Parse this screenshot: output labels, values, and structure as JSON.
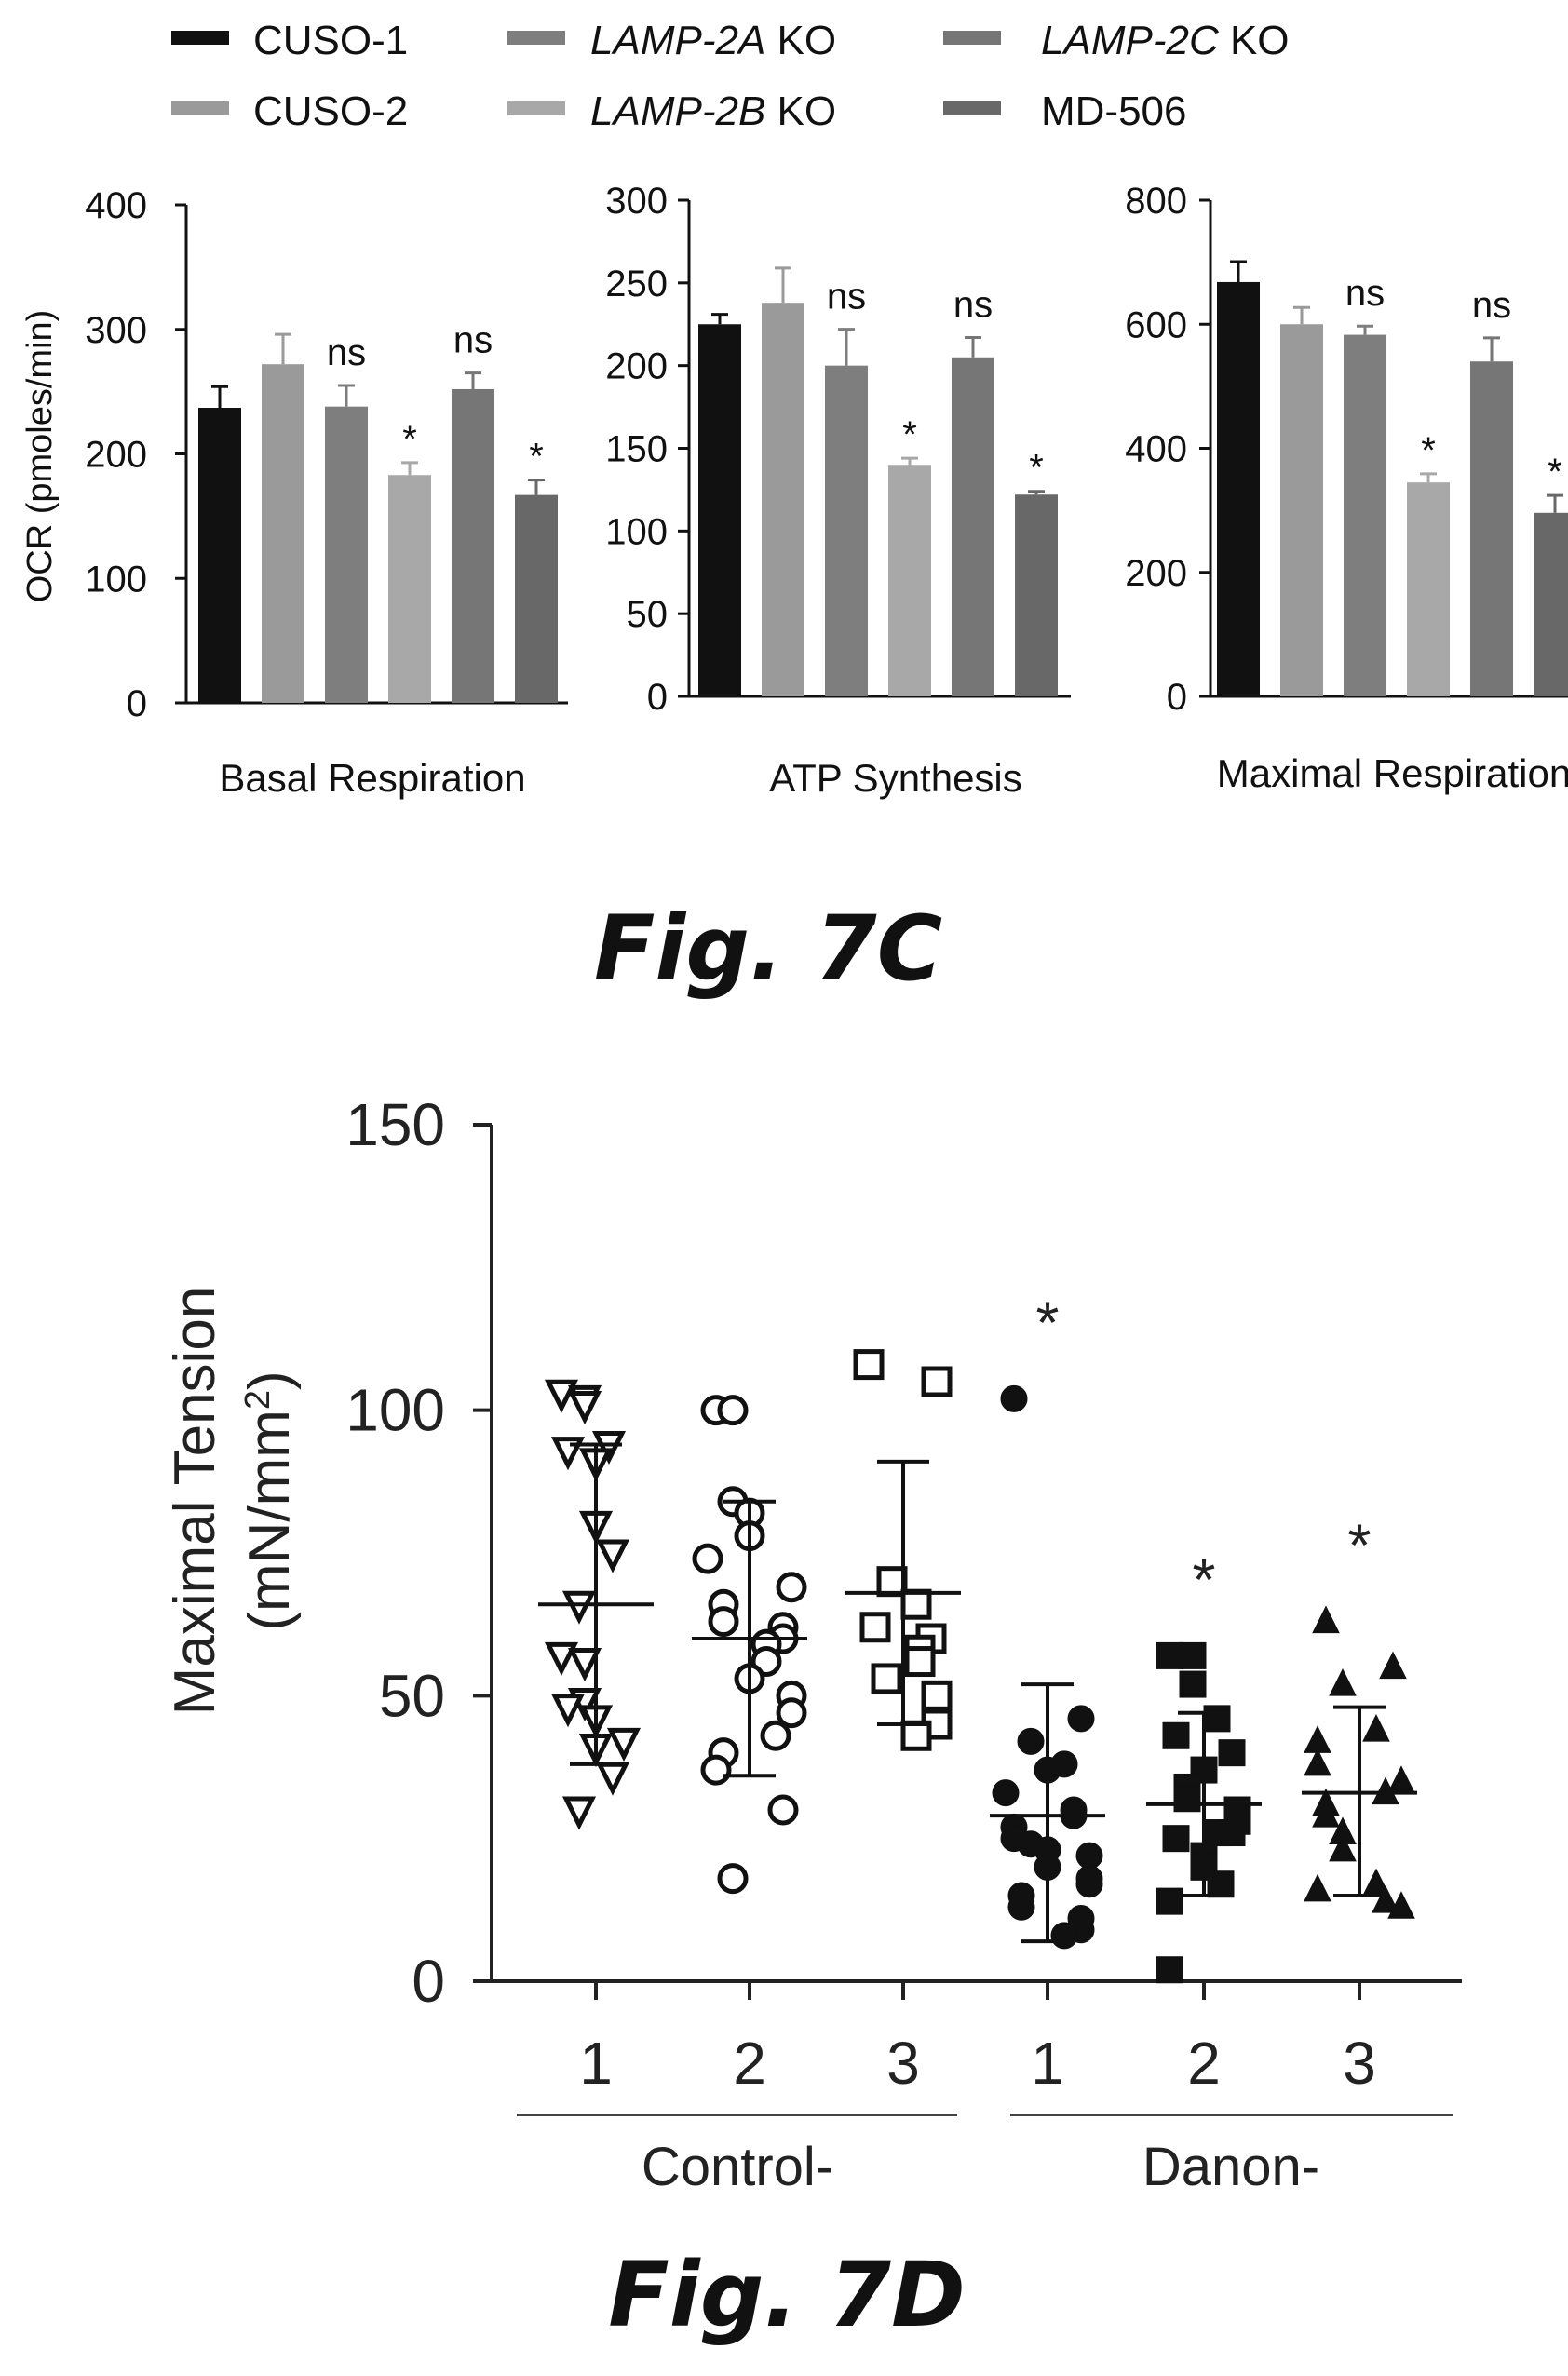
{
  "colors": {
    "CUSO-1": "#111111",
    "CUSO-2": "#9a9a9a",
    "LAMP-2A KO": "#7e7e7e",
    "LAMP-2B KO": "#a8a8a8",
    "LAMP-2C KO": "#767676",
    "MD-506": "#686868"
  },
  "legend": [
    {
      "italic": "",
      "rest": "CUSO-1",
      "color_key": "CUSO-1"
    },
    {
      "italic": "",
      "rest": "CUSO-2",
      "color_key": "CUSO-2"
    },
    {
      "italic": "LAMP-2A",
      "rest": " KO",
      "color_key": "LAMP-2A KO"
    },
    {
      "italic": "LAMP-2B",
      "rest": " KO",
      "color_key": "LAMP-2B KO"
    },
    {
      "italic": "LAMP-2C",
      "rest": " KO",
      "color_key": "LAMP-2C KO"
    },
    {
      "italic": "",
      "rest": "MD-506",
      "color_key": "MD-506"
    }
  ],
  "fig7c_caption": "Fig. 7C",
  "fig7d_caption": "Fig. 7D",
  "chart_data": [
    {
      "type": "bar",
      "title": "",
      "xlabel": "Basal Respiration",
      "ylabel": "OCR (pmoles/min)",
      "ylim": [
        0,
        400
      ],
      "yticks": [
        0,
        100,
        200,
        300,
        400
      ],
      "series": [
        {
          "name": "CUSO-1",
          "value": 237,
          "error": 17,
          "annotation": ""
        },
        {
          "name": "CUSO-2",
          "value": 272,
          "error": 24,
          "annotation": ""
        },
        {
          "name": "LAMP-2A KO",
          "value": 238,
          "error": 17,
          "annotation": "ns"
        },
        {
          "name": "LAMP-2B KO",
          "value": 183,
          "error": 10,
          "annotation": "*"
        },
        {
          "name": "LAMP-2C KO",
          "value": 252,
          "error": 13,
          "annotation": "ns"
        },
        {
          "name": "MD-506",
          "value": 167,
          "error": 12,
          "annotation": "*"
        }
      ]
    },
    {
      "type": "bar",
      "title": "",
      "xlabel": "ATP Synthesis",
      "ylabel": "",
      "ylim": [
        0,
        300
      ],
      "yticks": [
        0,
        50,
        100,
        150,
        200,
        250,
        300
      ],
      "series": [
        {
          "name": "CUSO-1",
          "value": 225,
          "error": 6,
          "annotation": ""
        },
        {
          "name": "CUSO-2",
          "value": 238,
          "error": 21,
          "annotation": ""
        },
        {
          "name": "LAMP-2A KO",
          "value": 200,
          "error": 22,
          "annotation": "ns"
        },
        {
          "name": "LAMP-2B KO",
          "value": 140,
          "error": 4,
          "annotation": "*"
        },
        {
          "name": "LAMP-2C KO",
          "value": 205,
          "error": 12,
          "annotation": "ns"
        },
        {
          "name": "MD-506",
          "value": 122,
          "error": 2,
          "annotation": "*"
        }
      ]
    },
    {
      "type": "bar",
      "title": "",
      "xlabel": "Maximal Respiration",
      "ylabel": "",
      "ylim": [
        0,
        800
      ],
      "yticks": [
        0,
        200,
        400,
        600,
        800
      ],
      "series": [
        {
          "name": "CUSO-1",
          "value": 668,
          "error": 33,
          "annotation": ""
        },
        {
          "name": "CUSO-2",
          "value": 600,
          "error": 27,
          "annotation": ""
        },
        {
          "name": "LAMP-2A KO",
          "value": 583,
          "error": 14,
          "annotation": "ns"
        },
        {
          "name": "LAMP-2B KO",
          "value": 345,
          "error": 14,
          "annotation": "*"
        },
        {
          "name": "LAMP-2C KO",
          "value": 540,
          "error": 38,
          "annotation": "ns"
        },
        {
          "name": "MD-506",
          "value": 296,
          "error": 28,
          "annotation": "*"
        }
      ]
    },
    {
      "type": "scatter",
      "title": "",
      "ylabel_line1": "Maximal Tension",
      "ylabel_line2_base": "(mN/mm",
      "ylabel_line2_sup": "2",
      "ylabel_line2_end": ")",
      "ylim": [
        0,
        150
      ],
      "yticks": [
        0,
        50,
        100,
        150
      ],
      "group_labels": [
        "Control-",
        "Danon-"
      ],
      "groups": [
        {
          "group": "Control-",
          "label": "1",
          "marker": "triangle-down-open",
          "mean": 66,
          "sd_low": 38,
          "sd_high": 94,
          "annotation": "",
          "points": [
            103,
            102,
            101,
            94,
            93,
            91,
            80,
            75,
            66,
            57,
            56,
            49,
            48,
            46,
            42,
            41,
            36,
            30
          ]
        },
        {
          "group": "Control-",
          "label": "2",
          "marker": "circle-open",
          "mean": 60,
          "sd_low": 36,
          "sd_high": 84,
          "annotation": "",
          "points": [
            100,
            100,
            84,
            82,
            78,
            74,
            69,
            66,
            63,
            62,
            60,
            59,
            56,
            53,
            50,
            47,
            43,
            40,
            37,
            30,
            18
          ]
        },
        {
          "group": "Control-",
          "label": "3",
          "marker": "square-open",
          "mean": 68,
          "sd_low": 45,
          "sd_high": 91,
          "annotation": "",
          "points": [
            108,
            105,
            70,
            66,
            62,
            60,
            58,
            56,
            53,
            50,
            45,
            43
          ]
        },
        {
          "group": "Danon-",
          "label": "1",
          "marker": "circle-filled",
          "mean": 29,
          "sd_low": 7,
          "sd_high": 52,
          "annotation": "*",
          "points": [
            102,
            46,
            42,
            38,
            37,
            33,
            30,
            29,
            27,
            25,
            24,
            23,
            22,
            20,
            18,
            17,
            15,
            13,
            11,
            9,
            8
          ]
        },
        {
          "group": "Danon-",
          "label": "2",
          "marker": "square-filled",
          "mean": 31,
          "sd_low": 15,
          "sd_high": 47,
          "annotation": "*",
          "points": [
            57,
            57,
            52,
            46,
            43,
            40,
            37,
            34,
            32,
            30,
            28,
            26,
            26,
            25,
            22,
            20,
            17,
            14,
            2
          ]
        },
        {
          "group": "Danon-",
          "label": "3",
          "marker": "triangle-up-filled",
          "mean": 33,
          "sd_low": 15,
          "sd_high": 48,
          "annotation": "*",
          "points": [
            63,
            55,
            52,
            44,
            42,
            38,
            35,
            33,
            31,
            29,
            26,
            23,
            17,
            16,
            14,
            13
          ]
        }
      ]
    }
  ]
}
